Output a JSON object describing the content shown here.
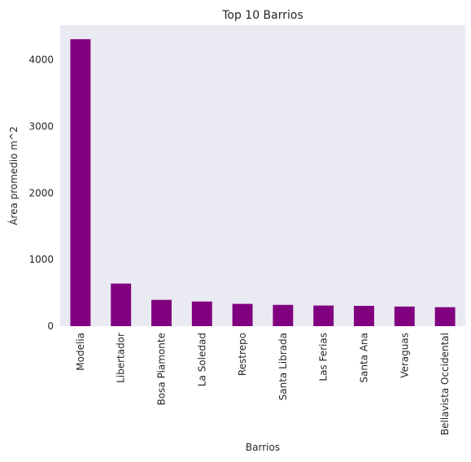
{
  "chart_data": {
    "type": "bar",
    "title": "Top 10 Barrios",
    "xlabel": "Barrios",
    "ylabel": "Área promedio m^2",
    "categories": [
      "Modelia",
      "Libertador",
      "Bosa Piamonte",
      "La Soledad",
      "Restrepo",
      "Santa Librada",
      "Las Ferias",
      "Santa Ana",
      "Veraguas",
      "Bellavista Occidental"
    ],
    "values": [
      4310,
      640,
      395,
      370,
      335,
      320,
      310,
      305,
      295,
      285
    ],
    "ylim": [
      0,
      4520
    ],
    "yticks": [
      0,
      1000,
      2000,
      3000,
      4000
    ],
    "grid": false,
    "colors": {
      "bar": "#800080",
      "plot_background": "#eaeaf2"
    }
  }
}
